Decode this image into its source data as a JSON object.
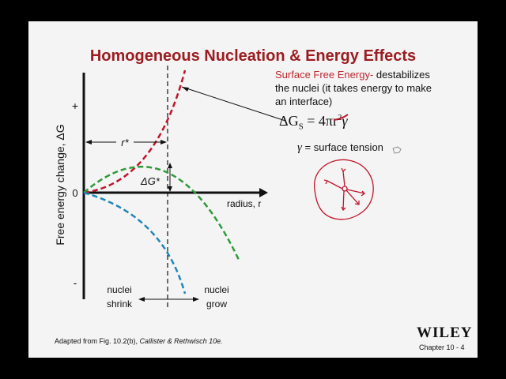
{
  "slide": {
    "title": "Homogeneous Nucleation & Energy Effects",
    "surface_free_energy_heading": "Surface Free Energy-",
    "surface_free_energy_text_1": " destabilizes",
    "surface_free_energy_text_2": "the nuclei (it takes energy to make",
    "surface_free_energy_text_3": "an interface)",
    "formula": {
      "lhs": "ΔG",
      "lhs_subscript": "S",
      "equals": " = 4πr",
      "exponent": "2",
      "gamma": "γ"
    },
    "gamma_definition": {
      "symbol": "γ",
      "text": " = surface tension"
    },
    "credit_prefix": "Adapted from Fig. 10.2(b), ",
    "credit_source": "Callister & Rethwisch 10e.",
    "publisher": "WILEY",
    "chapter_label": "Chapter 10 -  4"
  },
  "diagram": {
    "y_axis_label": "Free energy change, ΔG",
    "x_axis_label": "radius, r",
    "y_tick_plus": "+",
    "y_tick_zero": "0",
    "y_tick_minus": "-",
    "r_star_label": "r*",
    "delta_g_star_label": "ΔG*",
    "shrink_label_1": "nuclei",
    "shrink_label_2": "shrink",
    "grow_label_1": "nuclei",
    "grow_label_2": "grow",
    "colors": {
      "surface_curve": "#c0142a",
      "total_curve": "#2e9a3a",
      "volume_curve": "#1e86b8",
      "annotation_red": "#c0142a"
    }
  }
}
